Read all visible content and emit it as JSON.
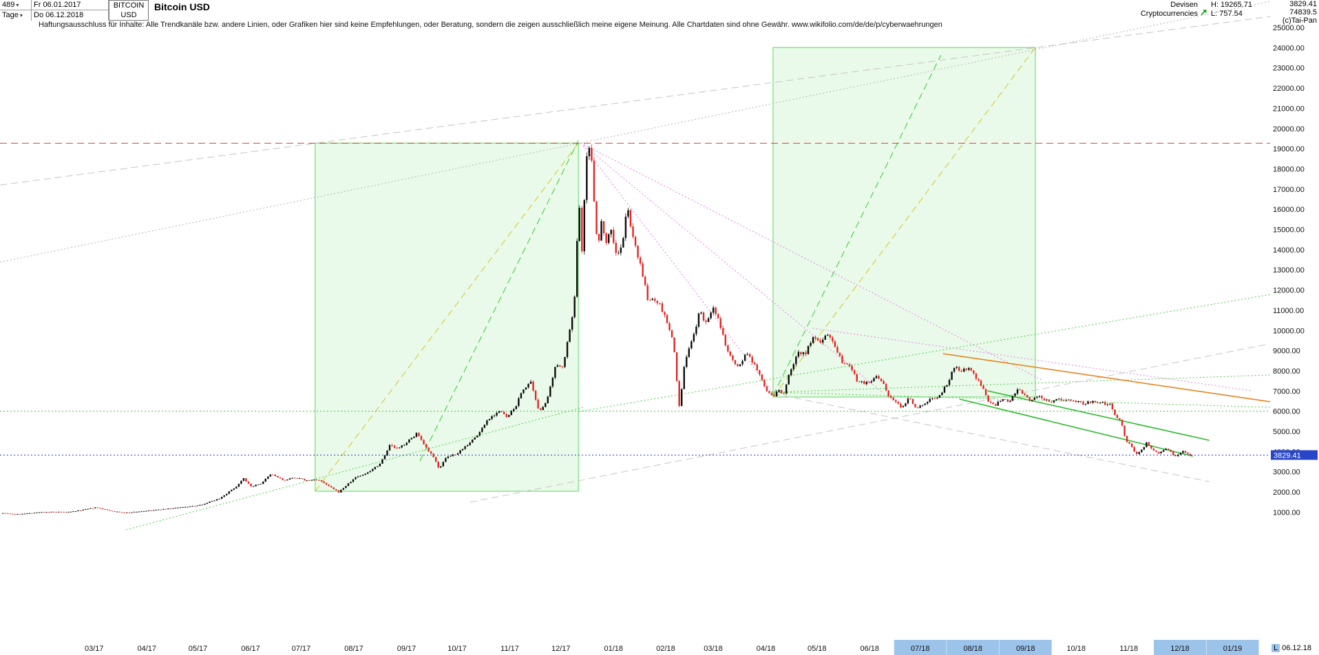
{
  "header": {
    "bars_count": "489",
    "timeframe": "Tage",
    "start_date": "Fr 06.01.2017",
    "end_date": "Do 06.12.2018",
    "symbol_line1": "BITCOIN",
    "symbol_line2": "USD",
    "title": "Bitcoin USD",
    "category_line1": "Devisen",
    "category_line2": "Cryptocurrencies",
    "high_label": "H: 19265.71",
    "low_label": "L: 757.54",
    "last_price": "3829.41",
    "secondary_value": "74839.5",
    "copyright": "(c)Tai-Pan"
  },
  "icons": {
    "dropdown_arrow": "▾",
    "trend_arrow": "↗"
  },
  "disclaimer": "Haftungsausschluss für Inhalte: Alle Trendkanäle bzw. andere Linien, oder Grafiken hier sind keine Empfehlungen, oder Beratung, sondern die zeigen ausschließlich meine eigene Meinung. Alle Chartdaten sind ohne Gewähr.  www.wikifolio.com/de/de/p/cyberwaehrungen",
  "colors": {
    "month_highlight": "#9cc3ea",
    "price_tag_bg": "#2946c8",
    "up_candle": "#0a0a0a",
    "down_candle": "#e02520",
    "box_fill": "rgba(122,226,122,0.16)",
    "box_border": "#5cd65c"
  },
  "price_tag": {
    "value": "3829.41"
  },
  "axis": {
    "scale_indicator": "L",
    "end_label": "06.12.18",
    "y_ticks": [
      "25000.00",
      "24000.00",
      "23000.00",
      "22000.00",
      "21000.00",
      "20000.00",
      "19000.00",
      "18000.00",
      "17000.00",
      "16000.00",
      "15000.00",
      "14000.00",
      "13000.00",
      "12000.00",
      "11000.00",
      "10000.00",
      "9000.00",
      "8000.00",
      "7000.00",
      "6000.00",
      "5000.00",
      "4000.00",
      "3000.00",
      "2000.00",
      "1000.00"
    ],
    "x_ticks": [
      {
        "label": "03/17",
        "m": 1.77,
        "highlight": false
      },
      {
        "label": "04/17",
        "m": 2.79,
        "highlight": false
      },
      {
        "label": "05/17",
        "m": 3.78,
        "highlight": false
      },
      {
        "label": "06/17",
        "m": 4.8,
        "highlight": false
      },
      {
        "label": "07/17",
        "m": 5.78,
        "highlight": false
      },
      {
        "label": "08/17",
        "m": 6.8,
        "highlight": false
      },
      {
        "label": "09/17",
        "m": 7.82,
        "highlight": false
      },
      {
        "label": "10/17",
        "m": 8.8,
        "highlight": false
      },
      {
        "label": "11/17",
        "m": 9.82,
        "highlight": false
      },
      {
        "label": "12/17",
        "m": 10.81,
        "highlight": false
      },
      {
        "label": "01/18",
        "m": 11.83,
        "highlight": false
      },
      {
        "label": "02/18",
        "m": 12.84,
        "highlight": false
      },
      {
        "label": "03/18",
        "m": 13.76,
        "highlight": false
      },
      {
        "label": "04/18",
        "m": 14.78,
        "highlight": false
      },
      {
        "label": "05/18",
        "m": 15.77,
        "highlight": false
      },
      {
        "label": "06/18",
        "m": 16.79,
        "highlight": false
      },
      {
        "label": "07/18",
        "m": 17.77,
        "highlight": true
      },
      {
        "label": "08/18",
        "m": 18.79,
        "highlight": true
      },
      {
        "label": "09/18",
        "m": 19.81,
        "highlight": true
      },
      {
        "label": "10/18",
        "m": 20.79,
        "highlight": false
      },
      {
        "label": "11/18",
        "m": 21.81,
        "highlight": false
      },
      {
        "label": "12/18",
        "m": 22.8,
        "highlight": true
      },
      {
        "label": "01/19",
        "m": 23.82,
        "highlight": true
      }
    ]
  },
  "chart_data": {
    "type": "candlestick",
    "title": "Bitcoin USD",
    "x_unit": "months from 06.01.2017",
    "x_start_date": "06.01.2017",
    "x_end_date": "06.12.2018",
    "bars_total": 489,
    "ylim": [
      1000,
      25000
    ],
    "y_step": 1000,
    "grid": false,
    "high": 19265.71,
    "low": 757.54,
    "last_close": 3829.41,
    "anchors": [
      [
        0,
        963
      ],
      [
        0.25,
        895
      ],
      [
        0.8,
        1010
      ],
      [
        1.3,
        1005
      ],
      [
        1.8,
        1230
      ],
      [
        2.1,
        1060
      ],
      [
        2.35,
        965
      ],
      [
        2.9,
        1090
      ],
      [
        3.3,
        1195
      ],
      [
        3.8,
        1330
      ],
      [
        4.2,
        1680
      ],
      [
        4.55,
        2320
      ],
      [
        4.66,
        2720
      ],
      [
        4.8,
        2260
      ],
      [
        5.0,
        2420
      ],
      [
        5.2,
        2890
      ],
      [
        5.45,
        2560
      ],
      [
        5.65,
        2720
      ],
      [
        5.9,
        2560
      ],
      [
        6.1,
        2620
      ],
      [
        6.35,
        2230
      ],
      [
        6.5,
        1985
      ],
      [
        6.68,
        2380
      ],
      [
        6.85,
        2760
      ],
      [
        7.0,
        2860
      ],
      [
        7.3,
        3380
      ],
      [
        7.5,
        4330
      ],
      [
        7.65,
        4120
      ],
      [
        7.9,
        4620
      ],
      [
        8.02,
        4920
      ],
      [
        8.15,
        4330
      ],
      [
        8.35,
        3680
      ],
      [
        8.45,
        3170
      ],
      [
        8.6,
        3720
      ],
      [
        8.8,
        3920
      ],
      [
        9.0,
        4360
      ],
      [
        9.2,
        4820
      ],
      [
        9.4,
        5620
      ],
      [
        9.62,
        6020
      ],
      [
        9.77,
        5680
      ],
      [
        9.92,
        6180
      ],
      [
        10.08,
        7080
      ],
      [
        10.22,
        7460
      ],
      [
        10.38,
        5980
      ],
      [
        10.55,
        6580
      ],
      [
        10.7,
        8150
      ],
      [
        10.85,
        8280
      ],
      [
        10.98,
        9920
      ],
      [
        11.08,
        11650
      ],
      [
        11.16,
        16700
      ],
      [
        11.22,
        13900
      ],
      [
        11.28,
        17600
      ],
      [
        11.33,
        19180
      ],
      [
        11.4,
        18650
      ],
      [
        11.47,
        15850
      ],
      [
        11.53,
        13950
      ],
      [
        11.6,
        15600
      ],
      [
        11.68,
        14350
      ],
      [
        11.78,
        15050
      ],
      [
        11.88,
        13750
      ],
      [
        12.0,
        14150
      ],
      [
        12.1,
        16250
      ],
      [
        12.2,
        14550
      ],
      [
        12.35,
        13350
      ],
      [
        12.5,
        11350
      ],
      [
        12.6,
        11650
      ],
      [
        12.75,
        11150
      ],
      [
        12.9,
        10150
      ],
      [
        13.0,
        9200
      ],
      [
        13.1,
        6150
      ],
      [
        13.22,
        8600
      ],
      [
        13.35,
        9450
      ],
      [
        13.5,
        10950
      ],
      [
        13.6,
        10350
      ],
      [
        13.75,
        11080
      ],
      [
        13.88,
        10380
      ],
      [
        14.0,
        9280
      ],
      [
        14.1,
        8780
      ],
      [
        14.25,
        8120
      ],
      [
        14.4,
        8920
      ],
      [
        14.52,
        8380
      ],
      [
        14.65,
        7920
      ],
      [
        14.8,
        6980
      ],
      [
        14.92,
        6680
      ],
      [
        15.02,
        7080
      ],
      [
        15.12,
        6820
      ],
      [
        15.25,
        7980
      ],
      [
        15.4,
        8920
      ],
      [
        15.55,
        8870
      ],
      [
        15.7,
        9680
      ],
      [
        15.82,
        9380
      ],
      [
        15.95,
        9870
      ],
      [
        16.1,
        9380
      ],
      [
        16.25,
        8480
      ],
      [
        16.4,
        8320
      ],
      [
        16.55,
        7520
      ],
      [
        16.7,
        7380
      ],
      [
        16.82,
        7520
      ],
      [
        16.92,
        7660
      ],
      [
        17.02,
        7520
      ],
      [
        17.15,
        6780
      ],
      [
        17.3,
        6420
      ],
      [
        17.42,
        6180
      ],
      [
        17.55,
        6680
      ],
      [
        17.7,
        6180
      ],
      [
        17.85,
        6380
      ],
      [
        18.0,
        6620
      ],
      [
        18.15,
        6780
      ],
      [
        18.3,
        7420
      ],
      [
        18.45,
        8280
      ],
      [
        18.55,
        7980
      ],
      [
        18.7,
        8180
      ],
      [
        18.85,
        7680
      ],
      [
        19.0,
        7080
      ],
      [
        19.1,
        6380
      ],
      [
        19.22,
        6280
      ],
      [
        19.35,
        6580
      ],
      [
        19.5,
        6420
      ],
      [
        19.65,
        7120
      ],
      [
        19.8,
        6720
      ],
      [
        19.92,
        6480
      ],
      [
        20.05,
        6720
      ],
      [
        20.18,
        6580
      ],
      [
        20.3,
        6480
      ],
      [
        20.45,
        6580
      ],
      [
        20.6,
        6620
      ],
      [
        20.75,
        6520
      ],
      [
        20.9,
        6380
      ],
      [
        21.05,
        6480
      ],
      [
        21.2,
        6420
      ],
      [
        21.35,
        6380
      ],
      [
        21.45,
        6420
      ],
      [
        21.55,
        5780
      ],
      [
        21.65,
        5580
      ],
      [
        21.75,
        4580
      ],
      [
        21.85,
        4320
      ],
      [
        21.95,
        3820
      ],
      [
        22.05,
        4080
      ],
      [
        22.15,
        4420
      ],
      [
        22.25,
        4120
      ],
      [
        22.4,
        3920
      ],
      [
        22.55,
        4180
      ],
      [
        22.7,
        3780
      ],
      [
        22.85,
        4020
      ],
      [
        23,
        3829.41
      ]
    ],
    "hlines": [
      {
        "name": "high-line",
        "price": 19265.71,
        "color": "#e83030",
        "style": "longdash"
      },
      {
        "name": "support-6000-line",
        "price": 6000,
        "color": "#3ec43e",
        "style": "dotted"
      },
      {
        "name": "last-price-line",
        "price": 3829.41,
        "color": "#2238c8",
        "style": "dotted"
      }
    ],
    "boxes": [
      {
        "name": "trend-channel-box-2017",
        "m": [
          6.05,
          11.15
        ],
        "price": [
          2036,
          19276
        ]
      },
      {
        "name": "trend-channel-box-2018",
        "m": [
          14.92,
          20.0
        ],
        "price": [
          6703,
          24012
        ]
      }
    ],
    "trend_lines": [
      {
        "name": "upper-gray-channel-line",
        "color": "#c2c2c2",
        "style": "longdash",
        "points": [
          [
            -0.05,
            17198
          ],
          [
            24.55,
            25545
          ]
        ]
      },
      {
        "name": "peak-gray-dotted-line",
        "color": "#b2b2b2",
        "style": "dotted",
        "points": [
          [
            -0.05,
            13381
          ],
          [
            24.55,
            26295
          ]
        ]
      },
      {
        "name": "channel1-yellow-diagonal",
        "color": "#d4c41e",
        "style": "longdash",
        "points": [
          [
            6.05,
            2036
          ],
          [
            11.15,
            19276
          ]
        ]
      },
      {
        "name": "channel2-yellow-diagonal",
        "color": "#d4c41e",
        "style": "longdash",
        "points": [
          [
            14.92,
            6703
          ],
          [
            20.0,
            24012
          ]
        ]
      },
      {
        "name": "channel1-green-dashed",
        "color": "#2ecc2e",
        "style": "longdash",
        "points": [
          [
            8.08,
            3535
          ],
          [
            11.15,
            19412
          ]
        ]
      },
      {
        "name": "channel2-green-dashed",
        "color": "#2ecc2e",
        "style": "longdash",
        "points": [
          [
            14.92,
            6771
          ],
          [
            18.17,
            23637
          ]
        ]
      },
      {
        "name": "peak-fan-pink-1",
        "color": "#e878e8",
        "style": "dotted",
        "points": [
          [
            11.2,
            19276
          ],
          [
            14.91,
            6942
          ]
        ]
      },
      {
        "name": "peak-fan-pink-2",
        "color": "#e878e8",
        "style": "dotted",
        "points": [
          [
            11.2,
            19276
          ],
          [
            17.03,
            6942
          ]
        ]
      },
      {
        "name": "peak-fan-pink-3",
        "color": "#e878e8",
        "style": "dotted",
        "points": [
          [
            11.2,
            19276
          ],
          [
            20.12,
            7555
          ]
        ]
      },
      {
        "name": "downtrend-pink-2018",
        "color": "#e878e8",
        "style": "dotted",
        "points": [
          [
            15.69,
            10110
          ],
          [
            24.19,
            7010
          ]
        ]
      },
      {
        "name": "rising-green-dotted",
        "color": "#44cc44",
        "style": "dotted",
        "points": [
          [
            11.17,
            5988
          ],
          [
            24.55,
            11779
          ]
        ]
      },
      {
        "name": "fan-green-dotted-a",
        "color": "#44cc44",
        "style": "dotted",
        "points": [
          [
            14.92,
            6942
          ],
          [
            24.55,
            6193
          ]
        ]
      },
      {
        "name": "fan-green-dotted-b",
        "color": "#44cc44",
        "style": "dotted",
        "points": [
          [
            14.92,
            6942
          ],
          [
            24.55,
            7794
          ]
        ]
      },
      {
        "name": "base-green-dotted-2017",
        "color": "#44cc44",
        "style": "dotted",
        "points": [
          [
            2.39,
            128
          ],
          [
            11.24,
            6193
          ]
        ]
      },
      {
        "name": "lower-gray-dashed-rising",
        "color": "#c4c4c4",
        "style": "longdash",
        "points": [
          [
            9.05,
            1491
          ],
          [
            24.52,
            9327
          ]
        ]
      },
      {
        "name": "gray-dashed-falling",
        "color": "#c4c4c4",
        "style": "longdash",
        "points": [
          [
            14.92,
            6874
          ],
          [
            23.37,
            2513
          ]
        ]
      },
      {
        "name": "orange-resistance-line",
        "color": "#e8821e",
        "style": "solid",
        "width": 1.6,
        "points": [
          [
            18.21,
            8849
          ],
          [
            24.55,
            6466
          ]
        ]
      },
      {
        "name": "green-channel-lower",
        "color": "#2abb2a",
        "style": "solid",
        "width": 1.6,
        "points": [
          [
            18.53,
            6601
          ],
          [
            23.05,
            3774
          ]
        ]
      },
      {
        "name": "green-channel-upper",
        "color": "#2abb2a",
        "style": "solid",
        "width": 1.6,
        "points": [
          [
            19.07,
            7010
          ],
          [
            23.37,
            4558
          ]
        ]
      }
    ]
  }
}
